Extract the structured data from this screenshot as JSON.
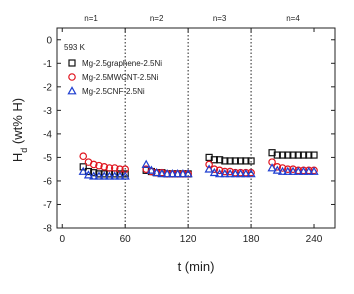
{
  "chart_data": {
    "type": "scatter",
    "xlabel": "t (min)",
    "ylabel": {
      "main": "H",
      "sub": "d",
      "rest": " (wt% H)"
    },
    "annotation": "593 K",
    "cycles": [
      "n=1",
      "n=2",
      "n=3",
      "n=4"
    ],
    "vlines": [
      60,
      120,
      180
    ],
    "xlim": [
      -5,
      260
    ],
    "ylim": [
      -8,
      0.5
    ],
    "xticks": [
      0,
      60,
      120,
      180,
      240
    ],
    "yticks": [
      0,
      -1,
      -2,
      -3,
      -4,
      -5,
      -6,
      -7,
      -8
    ],
    "legend": "upper left",
    "x": [
      20,
      25,
      30,
      35,
      40,
      45,
      50,
      55,
      60,
      80,
      85,
      90,
      95,
      100,
      105,
      110,
      115,
      120,
      140,
      145,
      150,
      155,
      160,
      165,
      170,
      175,
      180,
      200,
      205,
      210,
      215,
      220,
      225,
      230,
      235,
      240
    ],
    "series": [
      {
        "name": "Mg-2.5graphene-2.5Ni",
        "color": "#111111",
        "marker": "square",
        "values": [
          -5.4,
          -5.6,
          -5.65,
          -5.7,
          -5.7,
          -5.7,
          -5.7,
          -5.7,
          -5.7,
          -5.55,
          -5.6,
          -5.65,
          -5.65,
          -5.7,
          -5.7,
          -5.7,
          -5.7,
          -5.7,
          -5.0,
          -5.1,
          -5.1,
          -5.15,
          -5.15,
          -5.15,
          -5.15,
          -5.15,
          -5.15,
          -4.8,
          -4.9,
          -4.9,
          -4.9,
          -4.9,
          -4.9,
          -4.9,
          -4.9,
          -4.9
        ]
      },
      {
        "name": "Mg-2.5MWCNT-2.5Ni",
        "color": "#e0141e",
        "marker": "circle",
        "values": [
          -4.95,
          -5.2,
          -5.3,
          -5.35,
          -5.4,
          -5.45,
          -5.45,
          -5.5,
          -5.5,
          -5.5,
          -5.6,
          -5.65,
          -5.65,
          -5.7,
          -5.7,
          -5.7,
          -5.7,
          -5.7,
          -5.3,
          -5.5,
          -5.55,
          -5.6,
          -5.6,
          -5.65,
          -5.65,
          -5.65,
          -5.65,
          -5.2,
          -5.4,
          -5.45,
          -5.5,
          -5.5,
          -5.55,
          -5.55,
          -5.55,
          -5.55
        ]
      },
      {
        "name": "Mg-2.5CNF-2.5Ni",
        "color": "#1f3fd0",
        "marker": "triangle",
        "values": [
          -5.6,
          -5.75,
          -5.8,
          -5.8,
          -5.8,
          -5.8,
          -5.8,
          -5.8,
          -5.8,
          -5.3,
          -5.55,
          -5.65,
          -5.7,
          -5.7,
          -5.7,
          -5.7,
          -5.7,
          -5.7,
          -5.5,
          -5.65,
          -5.7,
          -5.7,
          -5.7,
          -5.7,
          -5.7,
          -5.7,
          -5.7,
          -5.45,
          -5.55,
          -5.6,
          -5.6,
          -5.6,
          -5.6,
          -5.6,
          -5.6,
          -5.6
        ]
      }
    ]
  }
}
